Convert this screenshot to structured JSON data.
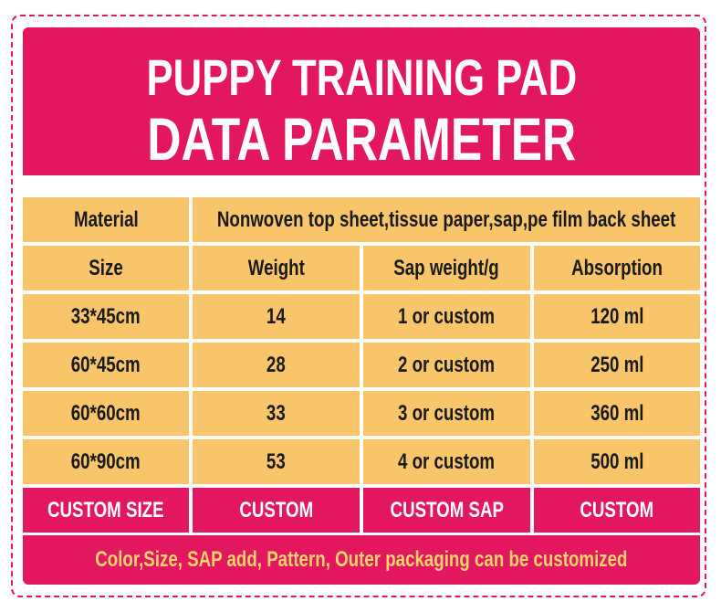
{
  "header": {
    "title_lines": [
      "PUPPY TRAINING PAD",
      "DATA PARAMETER"
    ]
  },
  "table": {
    "material": {
      "label": "Material",
      "value": "Nonwoven top sheet,tissue paper,sap,pe film back sheet"
    },
    "header_row": [
      "Size",
      "Weight",
      "Sap weight/g",
      "Absorption"
    ],
    "rows": [
      [
        "33*45cm",
        "14",
        "1 or custom",
        "120 ml"
      ],
      [
        "60*45cm",
        "28",
        "2 or custom",
        "250 ml"
      ],
      [
        "60*60cm",
        "33",
        "3 or custom",
        "360 ml"
      ],
      [
        "60*90cm",
        "53",
        "4 or custom",
        "500 ml"
      ]
    ],
    "custom_row": [
      "CUSTOM SIZE",
      "CUSTOM",
      "CUSTOM SAP",
      "CUSTOM"
    ]
  },
  "footer": "Color,Size, SAP add, Pattern, Outer packaging can be customized"
}
